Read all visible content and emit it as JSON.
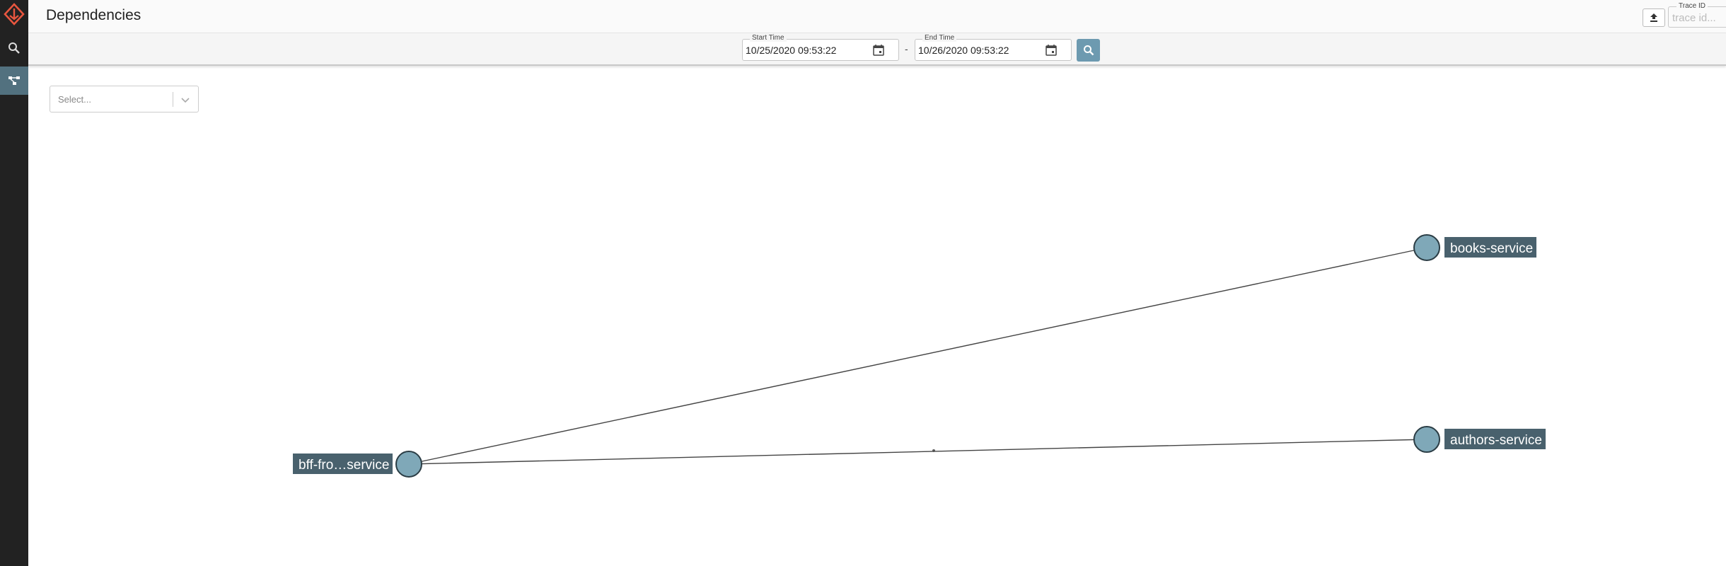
{
  "header": {
    "title": "Dependencies",
    "trace_id_label": "Trace ID",
    "trace_id_placeholder": "trace id..."
  },
  "sidebar": {
    "items": [
      {
        "name": "logo",
        "icon": "logo-icon"
      },
      {
        "name": "search",
        "icon": "search-icon"
      },
      {
        "name": "dependencies",
        "icon": "dependencies-icon",
        "active": true
      }
    ]
  },
  "toolbar": {
    "start_label": "Start Time",
    "start_value": "10/25/2020 09:53:22",
    "separator": "-",
    "end_label": "End Time",
    "end_value": "10/26/2020 09:53:22"
  },
  "filter": {
    "placeholder": "Select..."
  },
  "graph": {
    "nodes": [
      {
        "id": "bff",
        "label": "bff-fro…service"
      },
      {
        "id": "books",
        "label": "books-service"
      },
      {
        "id": "authors",
        "label": "authors-service"
      }
    ],
    "edges": [
      {
        "from": "bff",
        "to": "books"
      },
      {
        "from": "bff",
        "to": "authors"
      }
    ]
  },
  "colors": {
    "sidebar_bg": "#222222",
    "accent": "#6d9ab0",
    "active_sidebar": "#52717f",
    "node_fill": "#7fa8b8",
    "label_bg": "#49616d",
    "logo": "#e8563f"
  }
}
